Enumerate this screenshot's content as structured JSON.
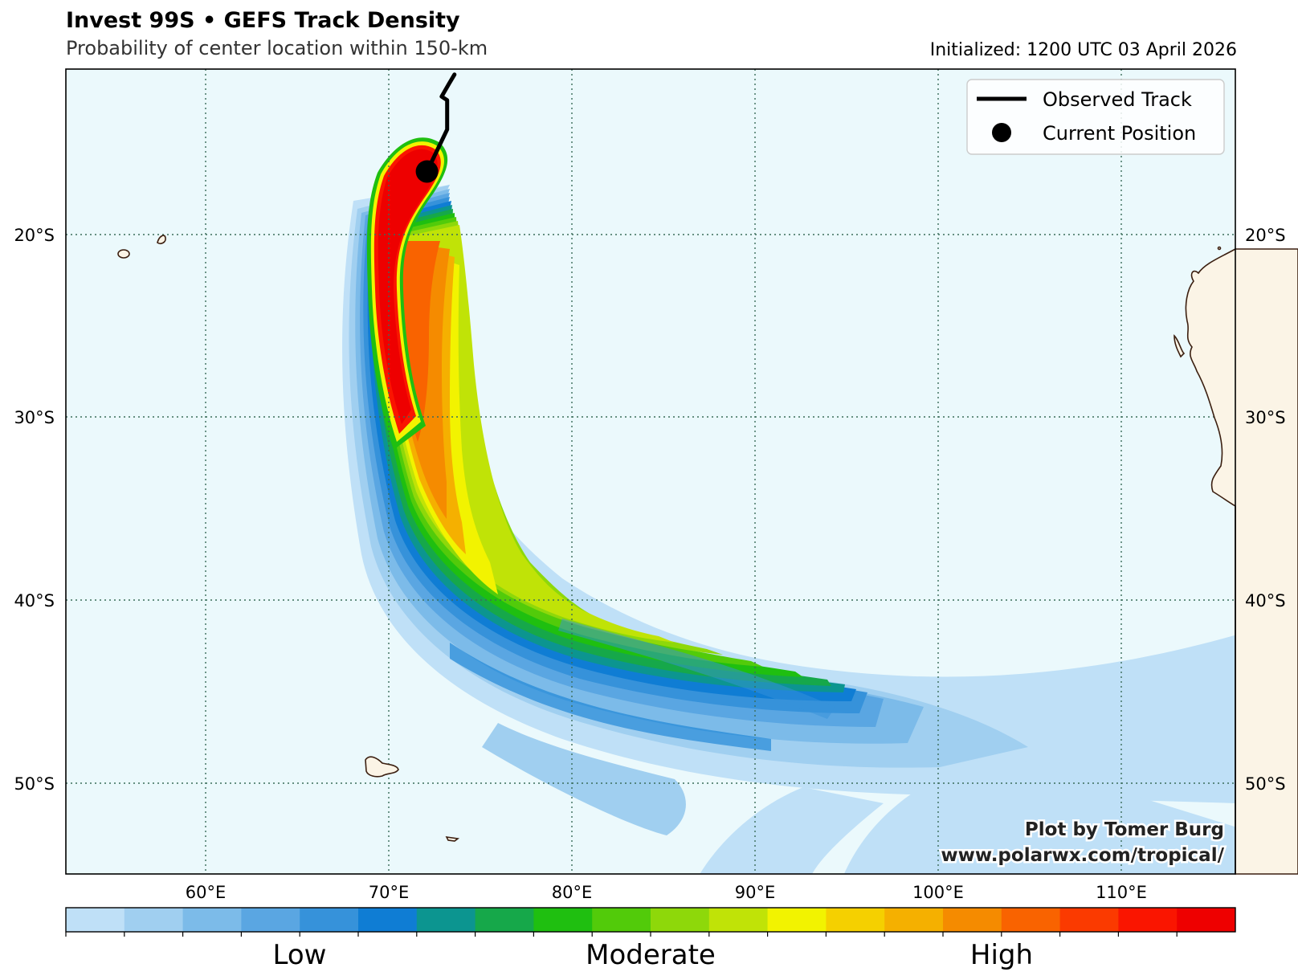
{
  "header": {
    "title": "Invest 99S • GEFS Track Density",
    "subtitle": "Probability of center location within 150-km",
    "initialized": "Initialized: 1200 UTC 03 April 2026"
  },
  "map": {
    "lat_labels": [
      "20°S",
      "30°S",
      "40°S",
      "50°S"
    ],
    "lon_labels": [
      "60°E",
      "70°E",
      "80°E",
      "90°E",
      "100°E",
      "110°E"
    ],
    "lon_range": [
      52.5,
      116.3
    ],
    "lat_range": [
      -55,
      -11
    ]
  },
  "legend": {
    "track_label": "Observed Track",
    "position_label": "Current Position"
  },
  "storm": {
    "current_position": {
      "lon": 72.2,
      "lat": -16.6
    },
    "observed_track": [
      {
        "lon": 72.2,
        "lat": -16.6
      },
      {
        "lon": 73.3,
        "lat": -14.3
      },
      {
        "lon": 73.3,
        "lat": -12.7
      },
      {
        "lon": 73.0,
        "lat": -12.5
      },
      {
        "lon": 73.4,
        "lat": -11.8
      },
      {
        "lon": 73.7,
        "lat": -11.3
      }
    ]
  },
  "credit": {
    "line1": "Plot by Tomer Burg",
    "line2": "www.polarwx.com/tropical/"
  },
  "colorbar": {
    "colors": [
      "#bfe0f7",
      "#a0cff0",
      "#7cbbe9",
      "#5aa6e2",
      "#3692da",
      "#0f7dd4",
      "#0c9590",
      "#16a84a",
      "#1fbf10",
      "#52cb0a",
      "#8ed80a",
      "#c0e307",
      "#f2f300",
      "#f5d000",
      "#f5b000",
      "#f58b00",
      "#f96300",
      "#fb3a00",
      "#fa1500",
      "#ee0000"
    ],
    "labels": [
      "Low",
      "Moderate",
      "High"
    ]
  }
}
